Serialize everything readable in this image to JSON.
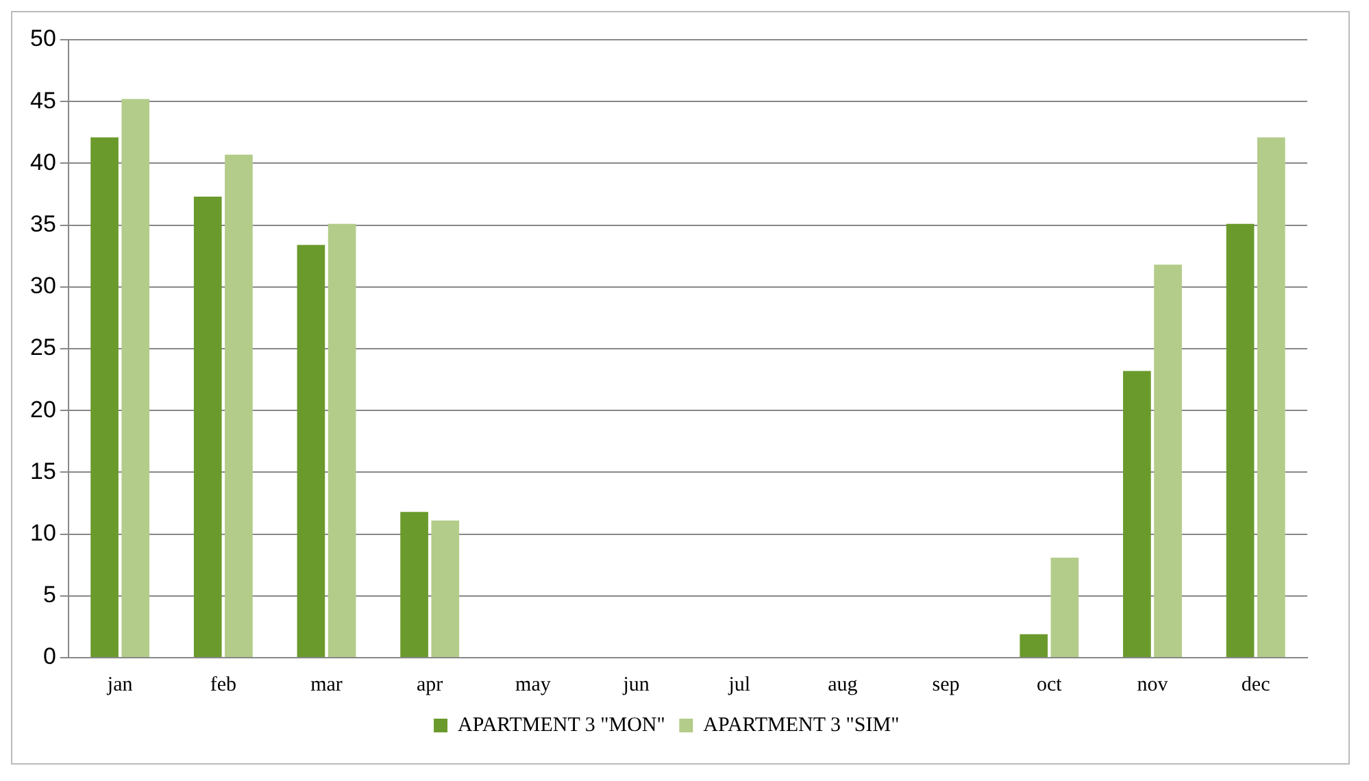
{
  "chart_data": {
    "type": "bar",
    "categories": [
      "jan",
      "feb",
      "mar",
      "apr",
      "may",
      "jun",
      "jul",
      "aug",
      "sep",
      "oct",
      "nov",
      "dec"
    ],
    "series": [
      {
        "name": "APARTMENT 3 \"MON\"",
        "color": "#6b9a2c",
        "values": [
          42.1,
          37.3,
          33.4,
          11.8,
          null,
          null,
          null,
          null,
          null,
          1.9,
          23.2,
          35.1
        ]
      },
      {
        "name": "APARTMENT 3 \"SIM\"",
        "color": "#b3cc8a",
        "values": [
          45.2,
          40.7,
          35.1,
          11.1,
          null,
          null,
          null,
          null,
          null,
          8.1,
          31.8,
          42.1
        ]
      }
    ],
    "ylim": [
      0,
      50
    ],
    "yticks": [
      0,
      5,
      10,
      15,
      20,
      25,
      30,
      35,
      40,
      45,
      50
    ],
    "grid": "y",
    "legend": "bottom"
  }
}
